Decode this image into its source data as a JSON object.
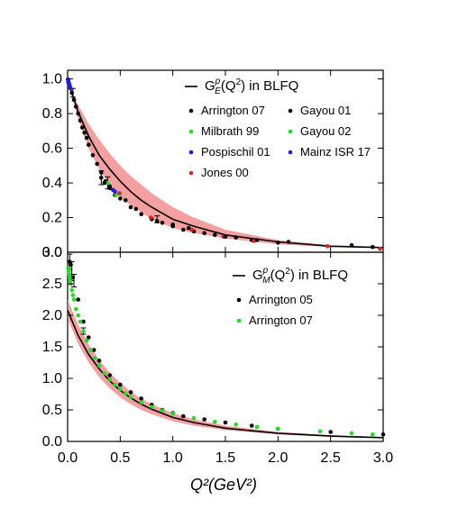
{
  "xlabel": "Q²(GeV²)",
  "colors": {
    "black": "#000000",
    "green": "#22dd22",
    "blue": "#1c1cdd",
    "red": "#dd2222",
    "band": "#f08080"
  },
  "chart_data": [
    {
      "type": "scatter",
      "id": "GE",
      "legend_title": "G_E^p(Q²) in BLFQ",
      "legend_title_parts": {
        "G": "G",
        "sub": "E",
        "sup": "p",
        "arg": "(Q",
        "argsup": "2",
        "end": ") in BLFQ"
      },
      "xlim": [
        0,
        3
      ],
      "ylim": [
        0,
        1.05
      ],
      "xticks": [
        0.0,
        0.5,
        1.0,
        1.5,
        2.0,
        2.5,
        3.0
      ],
      "yticks": [
        0.0,
        0.2,
        0.4,
        0.6,
        0.8,
        1.0
      ],
      "ytick_labels": [
        "0.0",
        "0.2",
        "0.4",
        "0.6",
        "0.8",
        "1.0"
      ],
      "xtick_labels": [
        "0.0",
        "0.5",
        "1.0",
        "1.5",
        "2.0",
        "2.5",
        "3.0"
      ],
      "band": {
        "x": [
          0,
          0.1,
          0.2,
          0.3,
          0.4,
          0.5,
          0.6,
          0.7,
          0.8,
          1.0,
          1.2,
          1.5,
          2.0,
          2.5,
          3.0
        ],
        "upper": [
          0.99,
          0.85,
          0.74,
          0.65,
          0.57,
          0.5,
          0.44,
          0.39,
          0.34,
          0.26,
          0.2,
          0.13,
          0.07,
          0.04,
          0.03
        ],
        "lower": [
          0.99,
          0.77,
          0.6,
          0.48,
          0.39,
          0.32,
          0.27,
          0.23,
          0.19,
          0.14,
          0.11,
          0.08,
          0.045,
          0.03,
          0.025
        ]
      },
      "curve": {
        "x": [
          0,
          0.1,
          0.2,
          0.3,
          0.4,
          0.5,
          0.6,
          0.7,
          0.8,
          1.0,
          1.2,
          1.5,
          2.0,
          2.5,
          3.0
        ],
        "y": [
          0.99,
          0.81,
          0.67,
          0.56,
          0.48,
          0.41,
          0.35,
          0.3,
          0.26,
          0.19,
          0.15,
          0.1,
          0.06,
          0.035,
          0.027
        ]
      },
      "series": [
        {
          "name": "Arrington 07",
          "color": "black",
          "x": [
            0.007,
            0.02,
            0.04,
            0.06,
            0.08,
            0.1,
            0.12,
            0.14,
            0.16,
            0.18,
            0.2,
            0.24,
            0.28,
            0.32,
            0.36,
            0.4,
            0.5,
            0.6,
            0.7,
            0.8,
            0.9,
            1.0,
            1.1,
            1.2,
            1.4,
            1.6,
            1.75,
            2.0
          ],
          "y": [
            0.98,
            0.96,
            0.92,
            0.88,
            0.84,
            0.8,
            0.76,
            0.72,
            0.69,
            0.66,
            0.62,
            0.56,
            0.51,
            0.46,
            0.41,
            0.38,
            0.31,
            0.26,
            0.22,
            0.19,
            0.17,
            0.15,
            0.13,
            0.12,
            0.1,
            0.085,
            0.07,
            0.055
          ]
        },
        {
          "name": "Milbrath 99",
          "color": "green",
          "x": [
            0.38,
            0.5
          ],
          "y": [
            0.4,
            0.34
          ]
        },
        {
          "name": "Pospischil 01",
          "color": "blue",
          "x": [
            0.43
          ],
          "y": [
            0.36
          ]
        },
        {
          "name": "Jones 00",
          "color": "red",
          "x": [
            0.49,
            0.79,
            1.18,
            1.48,
            1.77,
            2.47,
            2.97
          ],
          "y": [
            0.34,
            0.2,
            0.13,
            0.09,
            0.065,
            0.035,
            0.02
          ]
        },
        {
          "name": "Gayou 01",
          "color": "black",
          "x": [
            0.32,
            0.35,
            0.4,
            0.45,
            0.55,
            0.65,
            0.85,
            1.0,
            1.15,
            1.3,
            1.5,
            1.8,
            2.1,
            2.7,
            2.9
          ],
          "y": [
            0.43,
            0.4,
            0.37,
            0.33,
            0.3,
            0.25,
            0.18,
            0.16,
            0.14,
            0.11,
            0.09,
            0.07,
            0.06,
            0.04,
            0.03
          ]
        },
        {
          "name": "Gayou 02",
          "color": "green",
          "x": [
            0.46
          ],
          "y": [
            0.33
          ]
        },
        {
          "name": "Mainz ISR 17",
          "color": "blue",
          "x": [
            0.002,
            0.004,
            0.006,
            0.008,
            0.01,
            0.012,
            0.014,
            0.016,
            0.018,
            0.02,
            0.024,
            0.028,
            0.45
          ],
          "y": [
            0.998,
            0.995,
            0.99,
            0.985,
            0.98,
            0.975,
            0.97,
            0.965,
            0.96,
            0.955,
            0.95,
            0.945,
            0.35
          ]
        }
      ],
      "error_points": [
        {
          "x": 0.05,
          "y": 0.92,
          "err": 0.025
        },
        {
          "x": 0.32,
          "y": 0.43,
          "err": 0.04
        },
        {
          "x": 0.38,
          "y": 0.4,
          "err": 0.035
        },
        {
          "x": 0.85,
          "y": 0.19,
          "err": 0.02
        }
      ],
      "legend_entries": [
        "Arrington 07",
        "Gayou 01",
        "Milbrath 99",
        "Gayou 02",
        "Pospischil 01",
        "Mainz ISR 17",
        "Jones 00"
      ]
    },
    {
      "type": "scatter",
      "id": "GM",
      "legend_title": "G_M^p(Q²) in BLFQ",
      "legend_title_parts": {
        "G": "G",
        "sub": "M",
        "sup": "p",
        "arg": "(Q",
        "argsup": "2",
        "end": ") in BLFQ"
      },
      "xlim": [
        0,
        3
      ],
      "ylim": [
        0,
        3.0
      ],
      "xticks": [
        0.0,
        0.5,
        1.0,
        1.5,
        2.0,
        2.5,
        3.0
      ],
      "yticks": [
        0.0,
        0.5,
        1.0,
        1.5,
        2.0,
        2.5,
        3.0
      ],
      "ytick_labels": [
        "0.0",
        "0.5",
        "1.0",
        "1.5",
        "2.0",
        "2.5",
        "3.0"
      ],
      "xtick_labels": [
        "0.0",
        "0.5",
        "1.0",
        "1.5",
        "2.0",
        "2.5",
        "3.0"
      ],
      "band": {
        "x": [
          0,
          0.1,
          0.2,
          0.3,
          0.4,
          0.5,
          0.6,
          0.7,
          0.8,
          1.0,
          1.2,
          1.5,
          2.0,
          2.5,
          3.0
        ],
        "upper": [
          2.25,
          1.85,
          1.54,
          1.29,
          1.09,
          0.93,
          0.79,
          0.68,
          0.59,
          0.45,
          0.35,
          0.25,
          0.15,
          0.1,
          0.07
        ],
        "lower": [
          1.95,
          1.55,
          1.25,
          1.02,
          0.84,
          0.7,
          0.59,
          0.5,
          0.43,
          0.32,
          0.25,
          0.18,
          0.11,
          0.075,
          0.055
        ]
      },
      "curve": {
        "x": [
          0,
          0.1,
          0.2,
          0.3,
          0.4,
          0.5,
          0.6,
          0.7,
          0.8,
          1.0,
          1.2,
          1.5,
          2.0,
          2.5,
          3.0
        ],
        "y": [
          2.08,
          1.68,
          1.38,
          1.15,
          0.96,
          0.81,
          0.69,
          0.59,
          0.51,
          0.38,
          0.3,
          0.21,
          0.13,
          0.085,
          0.06
        ]
      },
      "series": [
        {
          "name": "Arrington 05",
          "color": "black",
          "x": [
            0.02,
            0.03,
            0.05,
            0.1,
            0.15,
            0.2,
            0.25,
            0.3,
            0.4,
            0.5,
            0.6,
            0.7,
            0.8,
            0.9,
            1.0,
            1.1,
            1.3,
            1.5,
            1.75,
            2.0,
            2.5,
            3.0
          ],
          "y": [
            2.85,
            2.8,
            2.6,
            2.25,
            1.9,
            1.65,
            1.45,
            1.28,
            1.05,
            0.9,
            0.78,
            0.68,
            0.58,
            0.5,
            0.45,
            0.4,
            0.35,
            0.3,
            0.25,
            0.2,
            0.15,
            0.11
          ]
        },
        {
          "name": "Arrington 07",
          "color": "green",
          "x": [
            0.005,
            0.01,
            0.015,
            0.02,
            0.025,
            0.03,
            0.04,
            0.05,
            0.06,
            0.08,
            0.1,
            0.12,
            0.15,
            0.18,
            0.22,
            0.26,
            0.3,
            0.35,
            0.4,
            0.45,
            0.5,
            0.55,
            0.6,
            0.7,
            0.8,
            0.9,
            1.0,
            1.2,
            1.4,
            1.6,
            1.8,
            2.0,
            2.4,
            2.7,
            2.9
          ],
          "y": [
            2.75,
            2.7,
            2.65,
            2.6,
            2.55,
            2.5,
            2.4,
            2.32,
            2.25,
            2.1,
            2.0,
            1.9,
            1.75,
            1.6,
            1.45,
            1.32,
            1.2,
            1.08,
            0.98,
            0.9,
            0.83,
            0.76,
            0.7,
            0.62,
            0.55,
            0.49,
            0.44,
            0.37,
            0.31,
            0.27,
            0.23,
            0.2,
            0.16,
            0.13,
            0.11
          ]
        }
      ],
      "error_points": [
        {
          "x": 0.02,
          "y": 2.85,
          "err": 0.12
        },
        {
          "x": 0.04,
          "y": 2.7,
          "err": 0.15
        },
        {
          "x": 0.06,
          "y": 2.55,
          "err": 0.1
        },
        {
          "x": 0.15,
          "y": 1.75,
          "err": 0.05
        }
      ],
      "legend_entries": [
        "Arrington 05",
        "Arrington 07"
      ]
    }
  ]
}
